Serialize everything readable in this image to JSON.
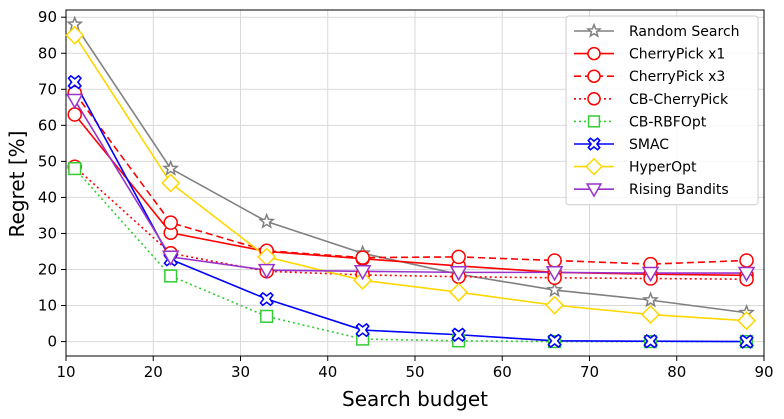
{
  "chart_data": {
    "type": "line",
    "title": "",
    "xlabel": "Search budget",
    "ylabel": "Regret [%]",
    "xlim": [
      10,
      90
    ],
    "ylim": [
      -4,
      92
    ],
    "xticks": [
      10,
      20,
      30,
      40,
      50,
      60,
      70,
      80,
      90
    ],
    "yticks": [
      0,
      10,
      20,
      30,
      40,
      50,
      60,
      70,
      80,
      90
    ],
    "grid": true,
    "legend_position": "top-right",
    "x": [
      11,
      22,
      33,
      44,
      55,
      66,
      77,
      88
    ],
    "series": [
      {
        "name": "Random Search",
        "color": "#808080",
        "linestyle": "solid",
        "marker": "star",
        "values": [
          88,
          48,
          33.3,
          24.5,
          18.7,
          14.3,
          11.5,
          8
        ]
      },
      {
        "name": "CherryPick x1",
        "color": "#ff0000",
        "linestyle": "solid",
        "marker": "circle",
        "values": [
          63,
          30.2,
          25,
          23,
          21,
          19.2,
          18.7,
          18.4
        ]
      },
      {
        "name": "CherryPick x3",
        "color": "#ff0000",
        "linestyle": "dashed",
        "marker": "circle",
        "values": [
          69,
          33,
          25.2,
          23.3,
          23.5,
          22.5,
          21.5,
          22.5
        ]
      },
      {
        "name": "CB-CherryPick",
        "color": "#ff0000",
        "linestyle": "dotted",
        "marker": "circle",
        "values": [
          48.5,
          24.5,
          19.5,
          18.5,
          18,
          17.7,
          17.5,
          17.3
        ]
      },
      {
        "name": "CB-RBFOpt",
        "color": "#33cc33",
        "linestyle": "dotted",
        "marker": "square",
        "values": [
          48,
          18.2,
          7,
          0.7,
          0.2,
          0,
          0,
          0
        ]
      },
      {
        "name": "SMAC",
        "color": "#0000ff",
        "linestyle": "solid",
        "marker": "xbox",
        "values": [
          72,
          22.8,
          11.8,
          3.2,
          1.9,
          0.2,
          0.1,
          0
        ]
      },
      {
        "name": "HyperOpt",
        "color": "#ffd700",
        "linestyle": "solid",
        "marker": "diamond",
        "values": [
          85,
          44,
          23.5,
          17,
          13.7,
          10.1,
          7.5,
          5.8
        ]
      },
      {
        "name": "Rising Bandits",
        "color": "#9932cc",
        "linestyle": "solid",
        "marker": "triangle-down",
        "values": [
          67,
          23.5,
          19.8,
          19.5,
          19.2,
          19.2,
          19,
          19
        ]
      }
    ]
  }
}
